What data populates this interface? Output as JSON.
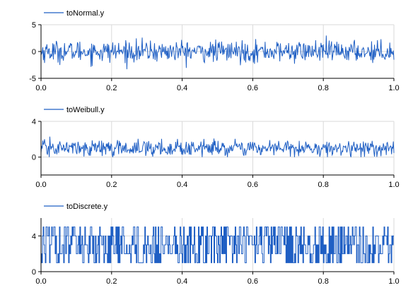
{
  "chart_data": [
    {
      "type": "line",
      "legend": "toNormal.y",
      "legend_position": "top-left",
      "xlim": [
        0,
        1
      ],
      "ylim": [
        -5,
        5
      ],
      "x_ticks": [
        "0.0",
        "0.2",
        "0.4",
        "0.6",
        "0.8",
        "1.0"
      ],
      "y_ticks": [
        "5",
        "0",
        "-5"
      ],
      "y_tick_values": [
        5,
        0,
        -5
      ],
      "grid": true,
      "color": "#1f5fc4",
      "signal": {
        "kind": "noise",
        "mean": 0,
        "amplitude": 1.0,
        "min": -3.3,
        "max": 3.1,
        "samples": 600
      }
    },
    {
      "type": "line",
      "legend": "toWeibull.y",
      "legend_position": "top-left",
      "xlim": [
        0,
        1
      ],
      "ylim": [
        -2,
        4
      ],
      "x_ticks": [
        "0.0",
        "0.2",
        "0.4",
        "0.6",
        "0.8",
        "1.0"
      ],
      "y_ticks": [
        "4",
        "0"
      ],
      "y_tick_values": [
        4,
        0
      ],
      "grid": true,
      "color": "#1f5fc4",
      "signal": {
        "kind": "noise",
        "mean": 1.0,
        "amplitude": 0.45,
        "min": 0.0,
        "max": 2.4,
        "samples": 600
      }
    },
    {
      "type": "line",
      "step": true,
      "legend": "toDiscrete.y",
      "legend_position": "top-left",
      "xlim": [
        0,
        1
      ],
      "ylim": [
        0,
        6
      ],
      "x_ticks": [
        "0.0",
        "0.2",
        "0.4",
        "0.6",
        "0.8",
        "1.0"
      ],
      "y_ticks": [
        "4",
        "0"
      ],
      "y_tick_values": [
        4,
        0
      ],
      "grid": true,
      "color": "#1f5fc4",
      "signal": {
        "kind": "discrete",
        "levels": [
          1,
          2,
          3,
          4,
          5
        ],
        "samples": 500
      }
    }
  ]
}
